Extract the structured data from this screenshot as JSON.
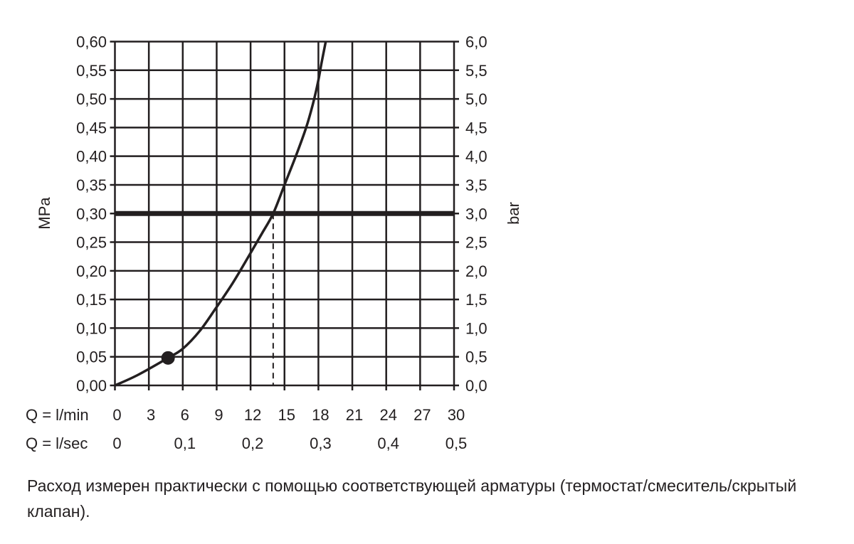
{
  "chart_data": {
    "type": "line",
    "ylabel_left": "MPa",
    "ylabel_right": "bar",
    "xlabel_row1": "Q = l/min",
    "xlabel_row2": "Q = l/sec",
    "xlim": [
      0,
      30
    ],
    "ylim": [
      0,
      0.6
    ],
    "grid": true,
    "x_ticks_lmin": [
      "0",
      "3",
      "6",
      "9",
      "12",
      "15",
      "18",
      "21",
      "24",
      "27",
      "30"
    ],
    "x_ticks_lsec": [
      {
        "at": 0,
        "label": "0"
      },
      {
        "at": 6,
        "label": "0,1"
      },
      {
        "at": 12,
        "label": "0,2"
      },
      {
        "at": 18,
        "label": "0,3"
      },
      {
        "at": 24,
        "label": "0,4"
      },
      {
        "at": 30,
        "label": "0,5"
      }
    ],
    "y_ticks_left": [
      "0,00",
      "0,05",
      "0,10",
      "0,15",
      "0,20",
      "0,25",
      "0,30",
      "0,35",
      "0,40",
      "0,45",
      "0,50",
      "0,55",
      "0,60"
    ],
    "y_ticks_right": [
      "0,0",
      "0,5",
      "1,0",
      "1,5",
      "2,0",
      "2,5",
      "3,0",
      "3,5",
      "4,0",
      "4,5",
      "5,0",
      "5,5",
      "6,0"
    ],
    "series": [
      {
        "points": [
          [
            0,
            0
          ],
          [
            2,
            0.018
          ],
          [
            4.7,
            0.048
          ],
          [
            6,
            0.064
          ],
          [
            7.5,
            0.095
          ],
          [
            8.9,
            0.134
          ],
          [
            10.4,
            0.178
          ],
          [
            11.85,
            0.226
          ],
          [
            13,
            0.265
          ],
          [
            14,
            0.3
          ],
          [
            15,
            0.35
          ],
          [
            16,
            0.4
          ],
          [
            16.9,
            0.449
          ],
          [
            17.5,
            0.49
          ],
          [
            17.95,
            0.528
          ],
          [
            18.3,
            0.565
          ],
          [
            18.65,
            0.6
          ]
        ],
        "color": "#231f20"
      }
    ],
    "marker_point": [
      4.7,
      0.048
    ],
    "reference_line_y": 0.3,
    "reference_dashed_x": 14
  },
  "caption": "Расход измерен практически с помощью соответствующей арматуры (термостат/смеситель/скрытый клапан)."
}
